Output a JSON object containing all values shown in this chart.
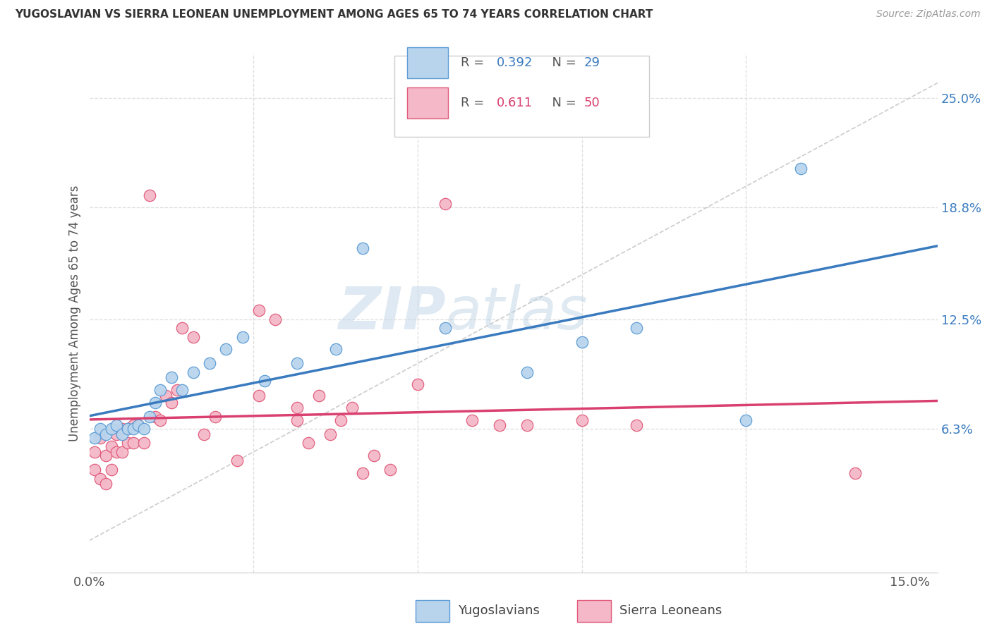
{
  "title": "YUGOSLAVIAN VS SIERRA LEONEAN UNEMPLOYMENT AMONG AGES 65 TO 74 YEARS CORRELATION CHART",
  "source": "Source: ZipAtlas.com",
  "ylabel": "Unemployment Among Ages 65 to 74 years",
  "xlim": [
    0.0,
    0.155
  ],
  "ylim": [
    -0.018,
    0.275
  ],
  "xtick_positions": [
    0.0,
    0.03,
    0.06,
    0.09,
    0.12,
    0.15
  ],
  "xticklabels": [
    "0.0%",
    "",
    "",
    "",
    "",
    "15.0%"
  ],
  "yticks_right": [
    0.063,
    0.125,
    0.188,
    0.25
  ],
  "ytick_right_labels": [
    "6.3%",
    "12.5%",
    "18.8%",
    "25.0%"
  ],
  "yugoslavian_fill": "#b8d4ed",
  "yugoslavian_edge": "#5b9bd5",
  "sierra_fill": "#f4b8c8",
  "sierra_edge": "#e05a7a",
  "blue_line": "#3a7bbf",
  "pink_line": "#d94070",
  "ref_line": "#cccccc",
  "R_yugo": "0.392",
  "N_yugo": "29",
  "R_sierra": "0.611",
  "N_sierra": "50",
  "watermark_zip": "ZIP",
  "watermark_atlas": "atlas",
  "yugo_x": [
    0.001,
    0.002,
    0.003,
    0.004,
    0.005,
    0.006,
    0.007,
    0.008,
    0.009,
    0.01,
    0.011,
    0.012,
    0.013,
    0.015,
    0.017,
    0.019,
    0.022,
    0.025,
    0.028,
    0.032,
    0.038,
    0.045,
    0.05,
    0.065,
    0.08,
    0.09,
    0.1,
    0.12,
    0.13
  ],
  "yugo_y": [
    0.058,
    0.063,
    0.06,
    0.063,
    0.065,
    0.06,
    0.063,
    0.063,
    0.065,
    0.063,
    0.07,
    0.078,
    0.085,
    0.092,
    0.085,
    0.095,
    0.1,
    0.108,
    0.115,
    0.09,
    0.1,
    0.108,
    0.165,
    0.12,
    0.095,
    0.112,
    0.12,
    0.068,
    0.21
  ],
  "sierra_x": [
    0.001,
    0.001,
    0.002,
    0.002,
    0.003,
    0.003,
    0.004,
    0.004,
    0.005,
    0.005,
    0.006,
    0.006,
    0.007,
    0.007,
    0.008,
    0.008,
    0.009,
    0.01,
    0.011,
    0.012,
    0.013,
    0.014,
    0.015,
    0.016,
    0.017,
    0.019,
    0.021,
    0.023,
    0.027,
    0.031,
    0.031,
    0.034,
    0.038,
    0.038,
    0.04,
    0.042,
    0.044,
    0.046,
    0.048,
    0.05,
    0.052,
    0.055,
    0.06,
    0.065,
    0.07,
    0.075,
    0.08,
    0.09,
    0.1,
    0.14
  ],
  "sierra_y": [
    0.05,
    0.04,
    0.058,
    0.035,
    0.048,
    0.032,
    0.053,
    0.04,
    0.05,
    0.06,
    0.063,
    0.05,
    0.063,
    0.055,
    0.055,
    0.065,
    0.065,
    0.055,
    0.195,
    0.07,
    0.068,
    0.082,
    0.078,
    0.085,
    0.12,
    0.115,
    0.06,
    0.07,
    0.045,
    0.13,
    0.082,
    0.125,
    0.068,
    0.075,
    0.055,
    0.082,
    0.06,
    0.068,
    0.075,
    0.038,
    0.048,
    0.04,
    0.088,
    0.19,
    0.068,
    0.065,
    0.065,
    0.068,
    0.065,
    0.038
  ]
}
